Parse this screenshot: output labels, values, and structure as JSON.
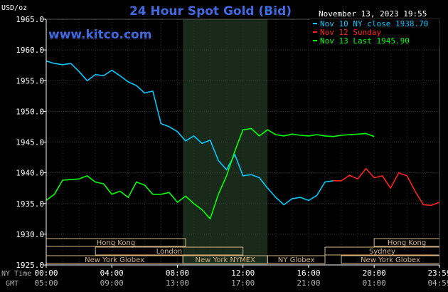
{
  "chart_data": {
    "type": "line",
    "title": "24 Hour Spot Gold (Bid)",
    "date_label": "November 13, 2023 19:55",
    "watermark": "www.kitco.com",
    "y_unit": "USD/oz",
    "ylim": [
      1925.0,
      1965.0
    ],
    "y_ticks": [
      "1965.0",
      "1960.0",
      "1955.0",
      "1950.0",
      "1945.0",
      "1940.0",
      "1935.0",
      "1930.0",
      "1925.0"
    ],
    "x_row1_label": "NY Time",
    "x_row2_label": "GMT",
    "x_ticks_ny": [
      "00:00",
      "04:00",
      "08:00",
      "12:00",
      "16:00",
      "20:00",
      "23:59"
    ],
    "x_ticks_gmt": [
      "05:00",
      "09:00",
      "13:00",
      "17:00",
      "21:00",
      "01:00",
      "04:59"
    ],
    "legend": [
      {
        "text": "Nov 10 NY close 1938.70",
        "color": "#00c8ff"
      },
      {
        "text": "Nov 12 Sunday",
        "color": "#ff2020"
      },
      {
        "text": "Nov 13 Last 1945.90",
        "color": "#00ff00"
      }
    ],
    "sessions": [
      {
        "label": "Hong Kong",
        "start": "00:00",
        "end": "08:30"
      },
      {
        "label": "Hong Kong",
        "start": "20:00",
        "end": "23:59"
      },
      {
        "label": "London",
        "start": "03:00",
        "end": "12:00"
      },
      {
        "label": "Sydney",
        "start": "17:00",
        "end": "23:59"
      },
      {
        "label": "New York Globex",
        "start": "00:00",
        "end": "08:20"
      },
      {
        "label": "New York NYMEX",
        "start": "08:20",
        "end": "13:30"
      },
      {
        "label": "NY Globex",
        "start": "13:30",
        "end": "17:00"
      },
      {
        "label": "New York Globex",
        "start": "18:00",
        "end": "23:59"
      }
    ],
    "highlight_range": [
      "08:20",
      "13:30"
    ],
    "series": [
      {
        "name": "Nov 10 NY close 1938.70",
        "color": "#00c8ff",
        "x": [
          "00:00",
          "00:30",
          "01:00",
          "01:30",
          "02:00",
          "02:30",
          "03:00",
          "03:30",
          "04:00",
          "04:30",
          "05:00",
          "05:30",
          "06:00",
          "06:30",
          "07:00",
          "07:30",
          "08:00",
          "08:30",
          "09:00",
          "09:30",
          "10:00",
          "10:30",
          "11:00",
          "11:30",
          "12:00",
          "12:30",
          "13:00",
          "13:30",
          "14:00",
          "14:30",
          "15:00",
          "15:30",
          "16:00",
          "16:30",
          "17:00",
          "17:30"
        ],
        "values": [
          1958.2,
          1957.8,
          1957.6,
          1957.8,
          1956.5,
          1955.0,
          1956.0,
          1955.8,
          1956.7,
          1955.8,
          1954.8,
          1954.2,
          1953.0,
          1953.3,
          1948.0,
          1947.5,
          1946.7,
          1945.2,
          1946.0,
          1944.8,
          1945.3,
          1942.0,
          1940.5,
          1943.0,
          1939.5,
          1939.7,
          1939.2,
          1937.5,
          1936.0,
          1934.8,
          1935.8,
          1936.0,
          1935.5,
          1936.3,
          1938.5,
          1938.7
        ]
      },
      {
        "name": "Nov 12 Sunday",
        "color": "#ff2020",
        "x": [
          "17:30",
          "18:00",
          "18:30",
          "19:00",
          "19:30",
          "20:00",
          "20:30",
          "21:00",
          "21:30",
          "22:00",
          "22:30",
          "23:00",
          "23:30",
          "23:59"
        ],
        "values": [
          1938.7,
          1938.7,
          1939.6,
          1939.0,
          1940.7,
          1939.2,
          1939.5,
          1937.5,
          1940.0,
          1939.5,
          1937.0,
          1934.8,
          1934.7,
          1935.2
        ]
      },
      {
        "name": "Nov 13 Last 1945.90",
        "color": "#00ff00",
        "x": [
          "00:00",
          "00:30",
          "01:00",
          "01:30",
          "02:00",
          "02:30",
          "03:00",
          "03:30",
          "04:00",
          "04:30",
          "05:00",
          "05:30",
          "06:00",
          "06:30",
          "07:00",
          "07:30",
          "08:00",
          "08:30",
          "09:00",
          "09:30",
          "10:00",
          "10:30",
          "11:00",
          "11:30",
          "12:00",
          "12:30",
          "13:00",
          "13:30",
          "14:00",
          "14:30",
          "15:00",
          "15:30",
          "16:00",
          "16:30",
          "17:00",
          "17:30",
          "18:00",
          "18:30",
          "19:00",
          "19:30",
          "20:00"
        ],
        "values": [
          1935.5,
          1936.5,
          1938.8,
          1938.9,
          1939.0,
          1939.5,
          1938.5,
          1938.2,
          1936.5,
          1937.0,
          1936.0,
          1938.5,
          1938.0,
          1936.5,
          1936.5,
          1936.8,
          1935.2,
          1936.2,
          1935.0,
          1934.0,
          1932.5,
          1936.5,
          1939.5,
          1943.5,
          1947.0,
          1947.2,
          1946.0,
          1947.0,
          1946.2,
          1946.0,
          1946.3,
          1946.1,
          1946.0,
          1946.2,
          1946.0,
          1945.9,
          1946.1,
          1946.2,
          1946.3,
          1946.4,
          1945.9
        ]
      }
    ]
  }
}
